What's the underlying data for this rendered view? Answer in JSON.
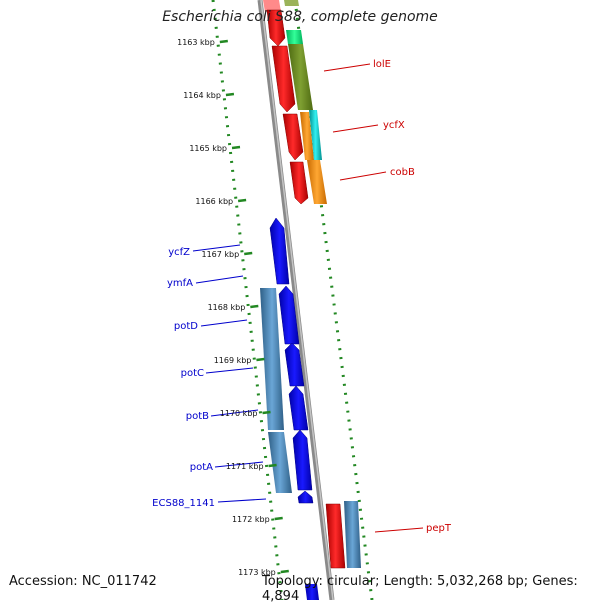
{
  "title": "Escherichia coli S88, complete genome",
  "footer": {
    "accession": "Accession: NC_011742",
    "summary": "Topology: circular; Length: 5,032,268 bp; Genes: 4,894"
  },
  "ruler": {
    "unit": "kbp",
    "ticks": [
      "1163 kbp",
      "1164 kbp",
      "1165 kbp",
      "1166 kbp",
      "1167 kbp",
      "1168 kbp",
      "1169 kbp",
      "1170 kbp",
      "1171 kbp",
      "1172 kbp",
      "1173 kbp"
    ]
  },
  "gene_labels": {
    "forward": [
      "lolE",
      "ycfX",
      "cobB",
      "pepT"
    ],
    "reverse": [
      "ycfZ",
      "ymfA",
      "potD",
      "potC",
      "potB",
      "potA",
      "ECS88_1141"
    ]
  },
  "colors": {
    "forward_cds": "#ff0000",
    "reverse_cds": "#0000ff",
    "forward_label": "#cc0000",
    "reverse_label": "#0000cc",
    "ruler": "#228822",
    "backbone": "#808080",
    "lolE_feature": "#6b8e23",
    "ycfX_feature": "#00cccc",
    "cobB_feature": "#ff8c00",
    "steelblue_feature": "#4682b4",
    "top_feature": "#00e676"
  }
}
